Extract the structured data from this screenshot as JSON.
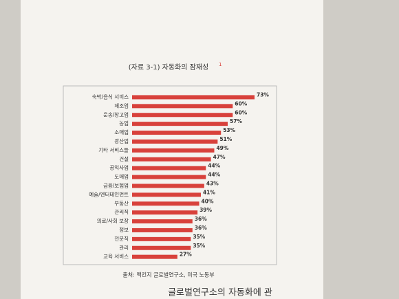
{
  "chart_data": {
    "type": "bar",
    "orientation": "horizontal",
    "title": "(자료 3-1) 자동화의 잠재성",
    "title_note": "1",
    "categories": [
      "숙박/음식 서비스",
      "제조업",
      "운송/창고업",
      "농업",
      "소매업",
      "광산업",
      "기타 서비스들",
      "건설",
      "공익사업",
      "도매업",
      "금융/보험업",
      "예술/엔터테인먼트",
      "부동산",
      "관리직",
      "의료/사회 보장",
      "정보",
      "전문직",
      "관리",
      "교육 서비스"
    ],
    "values": [
      73,
      60,
      60,
      57,
      53,
      51,
      49,
      47,
      44,
      44,
      43,
      41,
      40,
      39,
      36,
      36,
      35,
      35,
      27
    ],
    "value_labels": [
      "73%",
      "60%",
      "60%",
      "57%",
      "53%",
      "51%",
      "49%",
      "47%",
      "44%",
      "44%",
      "43%",
      "41%",
      "40%",
      "39%",
      "36%",
      "36%",
      "35%",
      "35%",
      "27%"
    ],
    "color": "#d8413b",
    "source": "출처: 맥킨지 글로벌연구소, 미국 노동부"
  },
  "body_text": "글로벌연구소의 자동화에 관"
}
